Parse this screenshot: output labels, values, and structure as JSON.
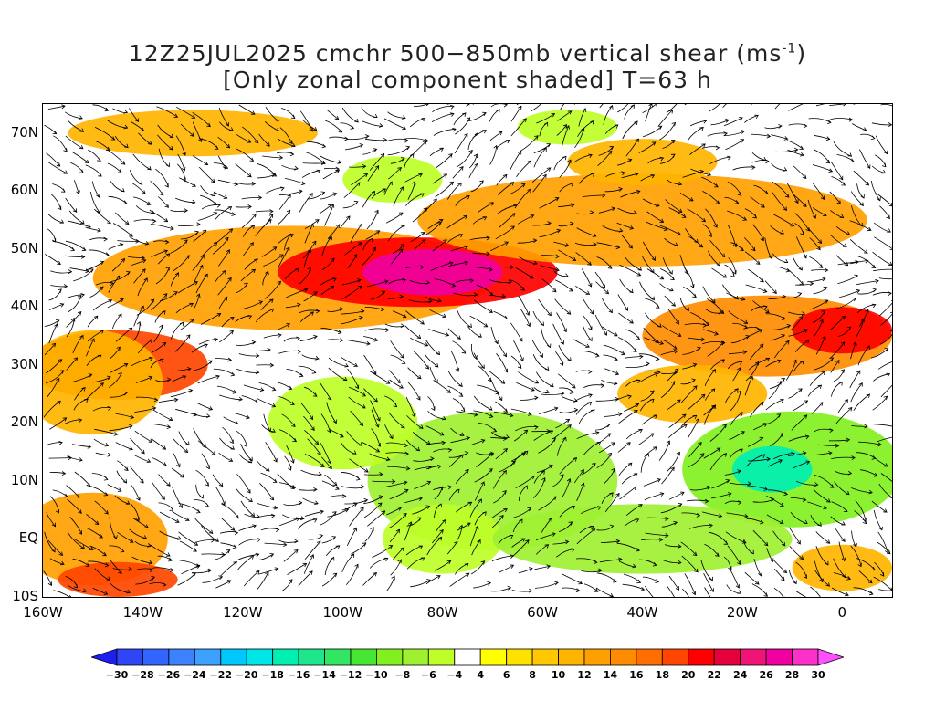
{
  "title": {
    "line1_main": "12Z25JUL2025 cmchr 500−850mb vertical shear (ms",
    "line1_sup": "-1",
    "line1_end": ")",
    "line2": "[Only zonal component shaded] T=63 h"
  },
  "map": {
    "lon_range": [
      -160,
      10
    ],
    "lat_range": [
      -10,
      75
    ],
    "lat_labels": [
      {
        "lat": 70,
        "text": "70N"
      },
      {
        "lat": 60,
        "text": "60N"
      },
      {
        "lat": 50,
        "text": "50N"
      },
      {
        "lat": 40,
        "text": "40N"
      },
      {
        "lat": 30,
        "text": "30N"
      },
      {
        "lat": 20,
        "text": "20N"
      },
      {
        "lat": 10,
        "text": "10N"
      },
      {
        "lat": 0,
        "text": "EQ"
      },
      {
        "lat": -10,
        "text": "10S"
      }
    ],
    "lon_labels": [
      {
        "lon": -160,
        "text": "160W"
      },
      {
        "lon": -140,
        "text": "140W"
      },
      {
        "lon": -120,
        "text": "120W"
      },
      {
        "lon": -100,
        "text": "100W"
      },
      {
        "lon": -80,
        "text": "80W"
      },
      {
        "lon": -60,
        "text": "60W"
      },
      {
        "lon": -40,
        "text": "40W"
      },
      {
        "lon": -20,
        "text": "20W"
      },
      {
        "lon": 0,
        "text": "0"
      }
    ],
    "shading_blobs": [
      {
        "lon": -110,
        "lat": 45,
        "rx": 40,
        "ry": 9,
        "value": 12
      },
      {
        "lon": -85,
        "lat": 46,
        "rx": 28,
        "ry": 6,
        "value": 20
      },
      {
        "lon": -82,
        "lat": 46,
        "rx": 14,
        "ry": 4,
        "value": 26
      },
      {
        "lon": -145,
        "lat": 30,
        "rx": 18,
        "ry": 6,
        "value": 18
      },
      {
        "lon": -150,
        "lat": 27,
        "rx": 14,
        "ry": 9,
        "value": 10
      },
      {
        "lon": -40,
        "lat": 55,
        "rx": 45,
        "ry": 8,
        "value": 12
      },
      {
        "lon": -15,
        "lat": 35,
        "rx": 25,
        "ry": 7,
        "value": 14
      },
      {
        "lon": 0,
        "lat": 36,
        "rx": 10,
        "ry": 4,
        "value": 20
      },
      {
        "lon": -150,
        "lat": 0,
        "rx": 15,
        "ry": 8,
        "value": 12
      },
      {
        "lon": -145,
        "lat": -7,
        "rx": 12,
        "ry": 3,
        "value": 18
      },
      {
        "lon": -10,
        "lat": 12,
        "rx": 22,
        "ry": 10,
        "value": -10
      },
      {
        "lon": -14,
        "lat": 12,
        "rx": 8,
        "ry": 4,
        "value": -18
      },
      {
        "lon": -70,
        "lat": 10,
        "rx": 25,
        "ry": 12,
        "value": -8
      },
      {
        "lon": -100,
        "lat": 20,
        "rx": 15,
        "ry": 8,
        "value": -6
      },
      {
        "lon": -80,
        "lat": 0,
        "rx": 12,
        "ry": 6,
        "value": -6
      },
      {
        "lon": -40,
        "lat": 0,
        "rx": 30,
        "ry": 6,
        "value": -8
      },
      {
        "lon": -90,
        "lat": 62,
        "rx": 10,
        "ry": 4,
        "value": -6
      },
      {
        "lon": -55,
        "lat": 71,
        "rx": 10,
        "ry": 3,
        "value": -6
      },
      {
        "lon": -130,
        "lat": 70,
        "rx": 25,
        "ry": 4,
        "value": 10
      },
      {
        "lon": -40,
        "lat": 65,
        "rx": 15,
        "ry": 4,
        "value": 10
      },
      {
        "lon": 0,
        "lat": -5,
        "rx": 10,
        "ry": 4,
        "value": 10
      },
      {
        "lon": -30,
        "lat": 25,
        "rx": 15,
        "ry": 5,
        "value": 10
      }
    ]
  },
  "colorbar": {
    "levels": [
      "-30",
      "-28",
      "-26",
      "-24",
      "-22",
      "-20",
      "-18",
      "-16",
      "-14",
      "-12",
      "-10",
      "-8",
      "-6",
      "-4",
      "4",
      "6",
      "8",
      "10",
      "12",
      "14",
      "16",
      "18",
      "20",
      "22",
      "24",
      "26",
      "28",
      "30"
    ],
    "colors": [
      "#1e1ef0",
      "#2e46f5",
      "#3264ff",
      "#3c82ff",
      "#3ca0ff",
      "#00c8ff",
      "#00e6e6",
      "#00f0b4",
      "#1ee68c",
      "#32e664",
      "#46e632",
      "#82f01e",
      "#a0f032",
      "#beff28",
      "#ffffff",
      "#ffff00",
      "#ffe100",
      "#ffc800",
      "#ffb400",
      "#ffa000",
      "#ff8c00",
      "#ff6e00",
      "#ff4600",
      "#ff0000",
      "#e6003c",
      "#f01478",
      "#f000a0",
      "#ff30c8",
      "#ff50ff"
    ]
  }
}
